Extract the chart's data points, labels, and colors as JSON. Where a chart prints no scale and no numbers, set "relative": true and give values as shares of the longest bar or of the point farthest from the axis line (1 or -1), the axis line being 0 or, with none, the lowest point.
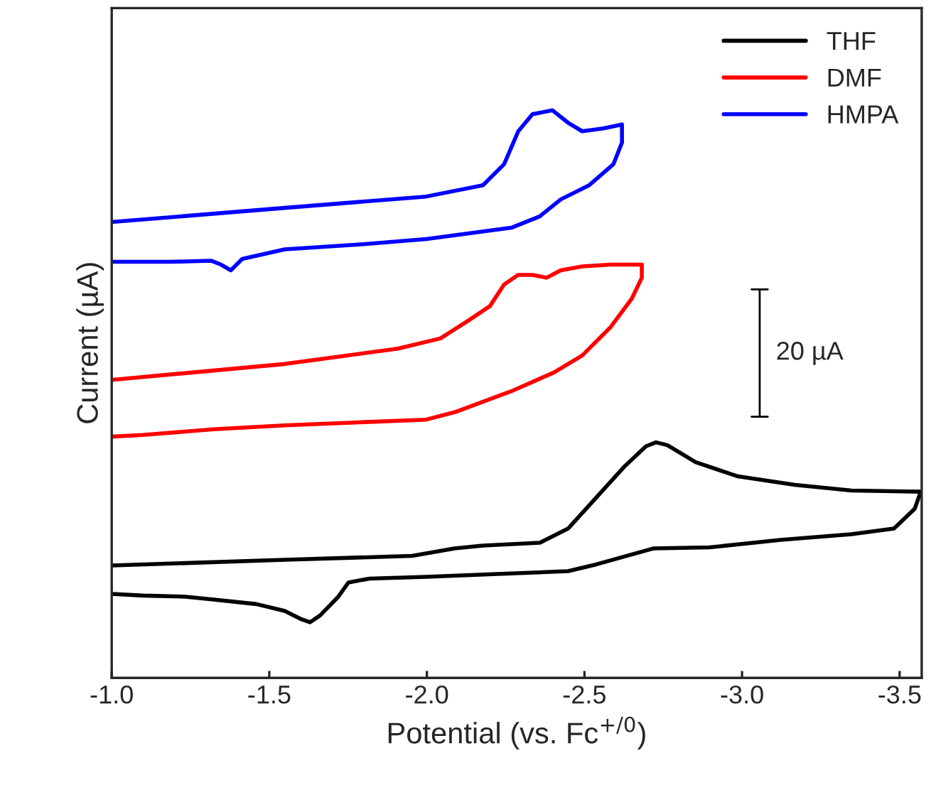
{
  "chart_data": {
    "type": "line",
    "relative": true,
    "xlabel": "Potential (vs. Fc$^{+/0}$)",
    "ylabel": "Current (µA)",
    "xlim": [
      -1.0,
      -3.57
    ],
    "xticks": [
      {
        "value": -1.0,
        "label": "-1.0"
      },
      {
        "value": -1.5,
        "label": "-1.5"
      },
      {
        "value": -2.0,
        "label": "-2.0"
      },
      {
        "value": -2.5,
        "label": "-2.5"
      },
      {
        "value": -3.0,
        "label": "-3.0"
      },
      {
        "value": -3.5,
        "label": "-3.5"
      }
    ],
    "grid": false,
    "legend": "top right",
    "line_style": "solid",
    "marker": "none",
    "annotations": [
      "20 µA"
    ],
    "series": [
      {
        "name": "THF",
        "color": "#000000",
        "x": [
          -1.0,
          -1.549,
          -1.953,
          -2.088,
          -2.178,
          -2.358,
          -2.448,
          -2.538,
          -2.628,
          -2.695,
          -2.727,
          -2.763,
          -2.853,
          -2.987,
          -3.167,
          -3.347,
          -3.567,
          -3.548,
          -3.482,
          -3.347,
          -3.122,
          -2.897,
          -2.718,
          -2.538,
          -2.448,
          -2.223,
          -1.998,
          -1.818,
          -1.751,
          -1.719,
          -1.661,
          -1.629,
          -1.603,
          -1.549,
          -1.459,
          -1.324,
          -1.234,
          -1.099,
          -1.0
        ],
        "values": [
          0.198,
          0.208,
          0.215,
          0.228,
          0.233,
          0.238,
          0.263,
          0.318,
          0.373,
          0.408,
          0.415,
          0.41,
          0.38,
          0.355,
          0.34,
          0.33,
          0.328,
          0.298,
          0.263,
          0.253,
          0.243,
          0.23,
          0.228,
          0.2,
          0.188,
          0.183,
          0.178,
          0.175,
          0.168,
          0.143,
          0.11,
          0.098,
          0.103,
          0.118,
          0.13,
          0.138,
          0.143,
          0.145,
          0.148
        ]
      },
      {
        "name": "DMF",
        "color": "#ff0000",
        "x": [
          -1.0,
          -1.549,
          -1.908,
          -2.043,
          -2.133,
          -2.2,
          -2.245,
          -2.29,
          -2.335,
          -2.38,
          -2.425,
          -2.493,
          -2.583,
          -2.682,
          -2.682,
          -2.65,
          -2.583,
          -2.493,
          -2.403,
          -2.268,
          -2.088,
          -1.998,
          -1.773,
          -1.549,
          -1.324,
          -1.099,
          -1.0
        ],
        "values": [
          0.525,
          0.553,
          0.58,
          0.598,
          0.63,
          0.655,
          0.693,
          0.71,
          0.71,
          0.705,
          0.718,
          0.725,
          0.728,
          0.728,
          0.705,
          0.668,
          0.618,
          0.568,
          0.538,
          0.505,
          0.468,
          0.455,
          0.45,
          0.445,
          0.438,
          0.428,
          0.425
        ]
      },
      {
        "name": "HMPA",
        "color": "#0000ff",
        "x": [
          -1.0,
          -1.549,
          -1.998,
          -2.178,
          -2.245,
          -2.29,
          -2.335,
          -2.398,
          -2.448,
          -2.493,
          -2.56,
          -2.619,
          -2.619,
          -2.592,
          -2.515,
          -2.425,
          -2.358,
          -2.268,
          -1.998,
          -1.773,
          -1.549,
          -1.414,
          -1.378,
          -1.347,
          -1.315,
          -1.189,
          -1.0
        ],
        "values": [
          0.803,
          0.828,
          0.848,
          0.868,
          0.905,
          0.963,
          0.993,
          1.0,
          0.978,
          0.963,
          0.968,
          0.975,
          0.943,
          0.905,
          0.868,
          0.843,
          0.813,
          0.793,
          0.773,
          0.763,
          0.755,
          0.738,
          0.718,
          0.728,
          0.735,
          0.733,
          0.733
        ]
      }
    ]
  }
}
